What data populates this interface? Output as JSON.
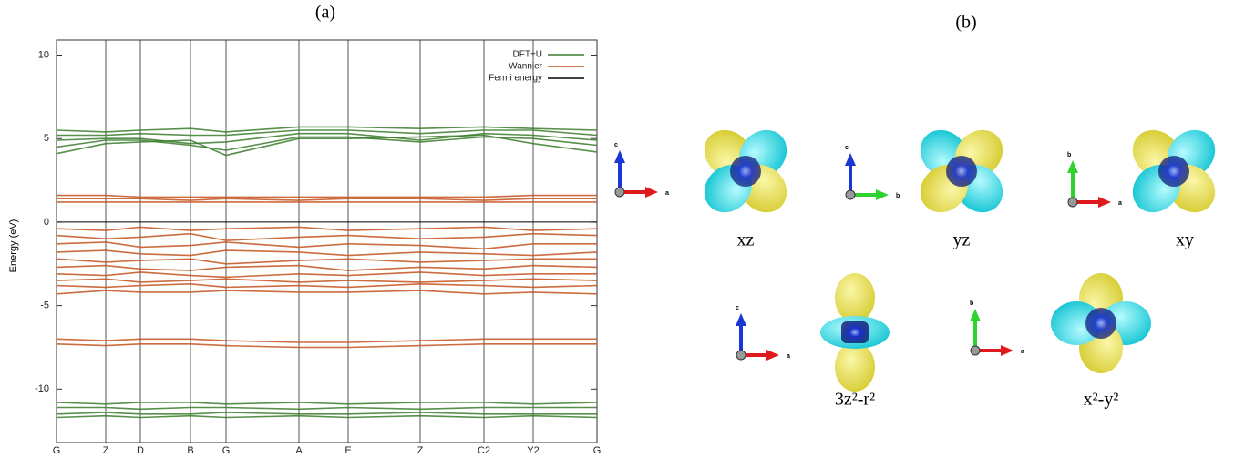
{
  "panel_labels": [
    "(a)",
    "(b)"
  ],
  "chart_data": {
    "type": "line",
    "y_label": "Energy (eV)",
    "x": [
      0,
      54,
      92,
      147,
      186,
      266,
      320,
      399,
      469,
      523,
      593
    ],
    "xlim": [
      0,
      593
    ],
    "xticks": [
      {
        "value": 0,
        "label": "G"
      },
      {
        "value": 54,
        "label": "Z"
      },
      {
        "value": 92,
        "label": "D"
      },
      {
        "value": 147,
        "label": "B"
      },
      {
        "value": 186,
        "label": "G"
      },
      {
        "value": 266,
        "label": "A"
      },
      {
        "value": 320,
        "label": "E"
      },
      {
        "value": 399,
        "label": "Z"
      },
      {
        "value": 469,
        "label": "C2"
      },
      {
        "value": 523,
        "label": "Y2"
      },
      {
        "value": 593,
        "label": "G"
      }
    ],
    "ylim": [
      -13.2,
      10.9
    ],
    "yticks": [
      -10,
      -5,
      0,
      5,
      10
    ],
    "legend": "top-right",
    "series": [
      {
        "name": "DFT+U",
        "color": "#3a7d2c",
        "bands": [
          [
            5.5,
            5.4,
            5.5,
            5.6,
            5.4,
            5.7,
            5.7,
            5.6,
            5.7,
            5.6,
            5.5
          ],
          [
            5.2,
            5.2,
            5.3,
            5.2,
            5.2,
            5.5,
            5.5,
            5.3,
            5.5,
            5.5,
            5.2
          ],
          [
            4.9,
            5.0,
            5.0,
            4.7,
            4.8,
            5.3,
            5.3,
            4.9,
            5.3,
            5.2,
            4.9
          ],
          [
            4.5,
            4.9,
            4.9,
            4.6,
            4.3,
            5.1,
            5.1,
            4.8,
            5.1,
            5.0,
            4.6
          ],
          [
            4.1,
            4.7,
            4.8,
            4.9,
            4.0,
            5.0,
            5.0,
            5.1,
            5.2,
            4.7,
            4.2
          ],
          [
            -10.8,
            -10.9,
            -10.8,
            -10.8,
            -10.9,
            -10.8,
            -10.9,
            -10.8,
            -10.8,
            -10.9,
            -10.8
          ],
          [
            -11.1,
            -11.1,
            -11.2,
            -11.1,
            -11.1,
            -11.2,
            -11.1,
            -11.2,
            -11.1,
            -11.1,
            -11.1
          ],
          [
            -11.5,
            -11.4,
            -11.5,
            -11.5,
            -11.4,
            -11.5,
            -11.5,
            -11.4,
            -11.5,
            -11.5,
            -11.5
          ],
          [
            -11.7,
            -11.6,
            -11.7,
            -11.6,
            -11.7,
            -11.6,
            -11.7,
            -11.6,
            -11.7,
            -11.6,
            -11.7
          ]
        ]
      },
      {
        "name": "Wannier",
        "color": "#c4521f",
        "bands": [
          [
            1.6,
            1.6,
            1.5,
            1.5,
            1.5,
            1.5,
            1.5,
            1.5,
            1.5,
            1.6,
            1.6
          ],
          [
            1.4,
            1.4,
            1.4,
            1.3,
            1.4,
            1.3,
            1.4,
            1.4,
            1.3,
            1.4,
            1.4
          ],
          [
            1.2,
            1.2,
            1.2,
            1.2,
            1.2,
            1.2,
            1.2,
            1.2,
            1.2,
            1.2,
            1.2
          ],
          [
            -0.4,
            -0.5,
            -0.3,
            -0.5,
            -0.4,
            -0.3,
            -0.5,
            -0.4,
            -0.3,
            -0.5,
            -0.4
          ],
          [
            -0.8,
            -1.0,
            -0.9,
            -0.7,
            -1.1,
            -0.9,
            -0.8,
            -1.0,
            -0.9,
            -0.7,
            -0.8
          ],
          [
            -1.3,
            -1.2,
            -1.5,
            -1.4,
            -1.2,
            -1.5,
            -1.3,
            -1.4,
            -1.6,
            -1.3,
            -1.3
          ],
          [
            -1.8,
            -1.7,
            -1.9,
            -2.0,
            -1.7,
            -1.8,
            -2.0,
            -1.8,
            -1.9,
            -2.0,
            -1.8
          ],
          [
            -2.2,
            -2.4,
            -2.3,
            -2.2,
            -2.5,
            -2.3,
            -2.2,
            -2.4,
            -2.3,
            -2.2,
            -2.2
          ],
          [
            -2.7,
            -2.6,
            -2.8,
            -2.9,
            -2.7,
            -2.6,
            -2.9,
            -2.7,
            -2.8,
            -2.6,
            -2.7
          ],
          [
            -3.1,
            -3.2,
            -3.0,
            -3.2,
            -3.3,
            -3.1,
            -3.2,
            -3.0,
            -3.2,
            -3.1,
            -3.1
          ],
          [
            -3.5,
            -3.4,
            -3.6,
            -3.5,
            -3.4,
            -3.6,
            -3.5,
            -3.6,
            -3.5,
            -3.4,
            -3.5
          ],
          [
            -3.8,
            -3.9,
            -3.8,
            -3.7,
            -3.9,
            -3.8,
            -3.9,
            -3.7,
            -3.8,
            -3.9,
            -3.8
          ],
          [
            -4.3,
            -4.1,
            -4.2,
            -4.2,
            -4.1,
            -4.2,
            -4.2,
            -4.1,
            -4.3,
            -4.2,
            -4.3
          ],
          [
            -7.0,
            -7.1,
            -7.0,
            -7.0,
            -7.1,
            -7.2,
            -7.2,
            -7.1,
            -7.0,
            -7.0,
            -7.0
          ],
          [
            -7.3,
            -7.4,
            -7.3,
            -7.3,
            -7.4,
            -7.5,
            -7.5,
            -7.4,
            -7.3,
            -7.3,
            -7.3
          ]
        ]
      },
      {
        "name": "Fermi energy",
        "color": "#000000",
        "value": 0
      }
    ]
  },
  "orbitals": [
    {
      "label": "xz",
      "axes": [
        "c",
        "a"
      ]
    },
    {
      "label": "yz",
      "axes": [
        "c",
        "b"
      ]
    },
    {
      "label": "xy",
      "axes": [
        "b",
        "a"
      ]
    },
    {
      "label": "3z²-r²",
      "axes": [
        "c",
        "a"
      ]
    },
    {
      "label": "x²-y²",
      "axes": [
        "b",
        "a"
      ]
    }
  ]
}
